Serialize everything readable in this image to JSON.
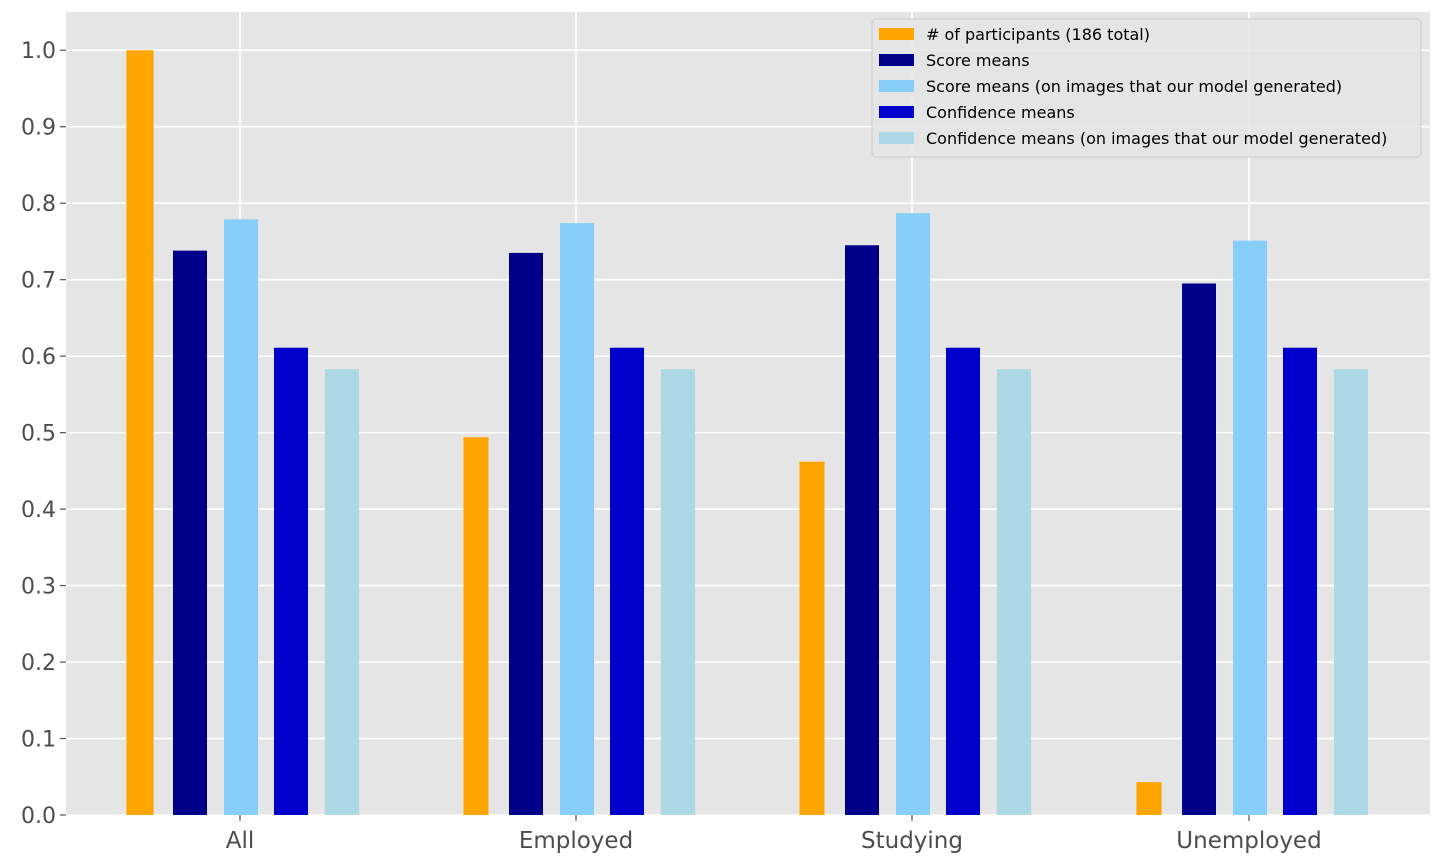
{
  "chart_data": {
    "type": "bar",
    "title": "",
    "xlabel": "",
    "ylabel": "",
    "categories": [
      "All",
      "Employed",
      "Studying",
      "Unemployed"
    ],
    "ylim": [
      0,
      1.05
    ],
    "yticks": [
      "0.0",
      "0.1",
      "0.2",
      "0.3",
      "0.4",
      "0.5",
      "0.6",
      "0.7",
      "0.8",
      "0.9",
      "1.0"
    ],
    "grid": true,
    "legend_position": "top-right",
    "series": [
      {
        "name": "# of participants (186 total)",
        "color": "#ffa500",
        "values": [
          1.0,
          0.494,
          0.462,
          0.043
        ]
      },
      {
        "name": "Score means",
        "color": "#00008b",
        "values": [
          0.738,
          0.735,
          0.745,
          0.695
        ]
      },
      {
        "name": "Score means (on images that our model generated)",
        "color": "#87cefa",
        "values": [
          0.779,
          0.774,
          0.787,
          0.751
        ]
      },
      {
        "name": "Confidence means",
        "color": "#0000cd",
        "values": [
          0.611,
          0.611,
          0.611,
          0.611
        ]
      },
      {
        "name": "Confidence means (on images that our model generated)",
        "color": "#add8e6",
        "values": [
          0.583,
          0.583,
          0.583,
          0.583
        ]
      }
    ]
  }
}
